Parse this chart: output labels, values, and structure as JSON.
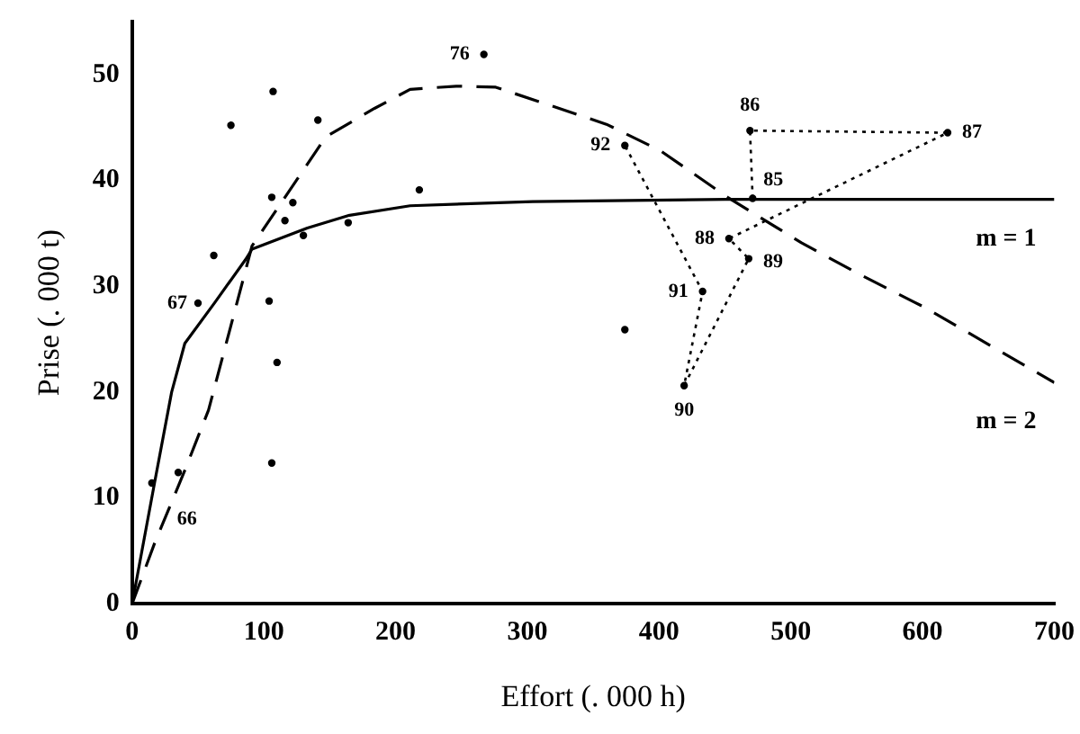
{
  "chart_data": {
    "type": "scatter",
    "xlabel": "Effort (. 000 h)",
    "ylabel": "Prise (. 000 t)",
    "xlim": [
      0,
      700
    ],
    "xticks": [
      0,
      100,
      200,
      300,
      400,
      500,
      600,
      700
    ],
    "ylim": [
      0,
      55
    ],
    "yticks": [
      0,
      10,
      20,
      30,
      40,
      50
    ],
    "grid": false,
    "legend": false,
    "marker": "circle",
    "series": [
      {
        "color": "#000000",
        "x": [
          15,
          35,
          50,
          62,
          75,
          107,
          106,
          104,
          110,
          106,
          116,
          122,
          130,
          141,
          164,
          218,
          267,
          374,
          374,
          419,
          433,
          453,
          468,
          469,
          471,
          619
        ],
        "values": [
          11.4,
          12.4,
          28.4,
          32.9,
          45.2,
          48.4,
          38.4,
          28.6,
          22.8,
          13.3,
          36.2,
          37.9,
          34.8,
          45.7,
          36,
          39.1,
          51.9,
          43.3,
          25.9,
          20.6,
          29.5,
          34.5,
          32.6,
          44.7,
          38.3,
          44.5
        ]
      },
      {
        "type": "line",
        "line_style": "dotted",
        "marker": "none",
        "color": "#000000",
        "x": [
          471,
          469,
          619,
          453,
          468,
          419,
          433,
          374
        ],
        "values": [
          38.3,
          44.7,
          44.5,
          34.5,
          32.6,
          20.6,
          29.5,
          43.3
        ]
      },
      {
        "type": "line",
        "name": "m = 1",
        "line_style": "solid",
        "marker": "none",
        "color": "#000000",
        "x": [
          0,
          17,
          30,
          40,
          63,
          86,
          91,
          133,
          165,
          211,
          304,
          450,
          700
        ],
        "values": [
          0,
          11.4,
          20,
          24.6,
          28.5,
          32.5,
          33.5,
          35.5,
          36.7,
          37.6,
          38,
          38.2,
          38.2
        ]
      },
      {
        "type": "line",
        "name": "m = 2",
        "line_style": "dashed",
        "marker": "none",
        "color": "#000000",
        "x": [
          0,
          17,
          40,
          58,
          91,
          147,
          184,
          211,
          246,
          276,
          360,
          401,
          452,
          508,
          554,
          600,
          700
        ],
        "values": [
          0,
          5.7,
          12.6,
          18.3,
          33.8,
          44.1,
          46.8,
          48.6,
          48.9,
          48.8,
          45.3,
          42.8,
          38.4,
          34.1,
          31,
          28.1,
          20.9
        ]
      }
    ],
    "annotations": [
      {
        "text": "66",
        "x": 15,
        "y": 11.4
      },
      {
        "text": "67",
        "x": 50,
        "y": 28.4
      },
      {
        "text": "76",
        "x": 267,
        "y": 51.9
      },
      {
        "text": "85",
        "x": 471,
        "y": 38.3
      },
      {
        "text": "86",
        "x": 469,
        "y": 44.7
      },
      {
        "text": "87",
        "x": 619,
        "y": 44.5
      },
      {
        "text": "88",
        "x": 453,
        "y": 34.5
      },
      {
        "text": "89",
        "x": 468,
        "y": 32.6
      },
      {
        "text": "90",
        "x": 419,
        "y": 20.6
      },
      {
        "text": "91",
        "x": 433,
        "y": 29.5
      },
      {
        "text": "92",
        "x": 374,
        "y": 43.3
      }
    ]
  }
}
